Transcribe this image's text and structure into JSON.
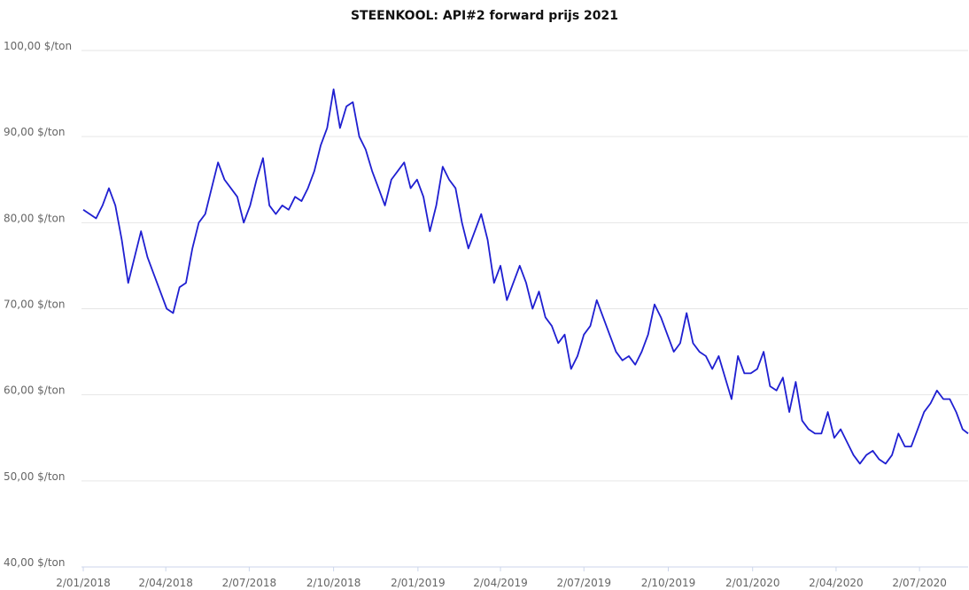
{
  "chart_data": {
    "type": "line",
    "title": "STEENKOOL: API#2 forward prijs 2021",
    "x": [
      "2018-01-02",
      "2018-01-09",
      "2018-01-16",
      "2018-01-23",
      "2018-01-30",
      "2018-02-06",
      "2018-02-13",
      "2018-02-20",
      "2018-02-27",
      "2018-03-06",
      "2018-03-13",
      "2018-03-20",
      "2018-03-27",
      "2018-04-03",
      "2018-04-10",
      "2018-04-17",
      "2018-04-24",
      "2018-05-01",
      "2018-05-08",
      "2018-05-15",
      "2018-05-22",
      "2018-05-29",
      "2018-06-05",
      "2018-06-12",
      "2018-06-19",
      "2018-06-26",
      "2018-07-03",
      "2018-07-10",
      "2018-07-17",
      "2018-07-24",
      "2018-07-31",
      "2018-08-07",
      "2018-08-14",
      "2018-08-21",
      "2018-08-28",
      "2018-09-04",
      "2018-09-11",
      "2018-09-18",
      "2018-09-25",
      "2018-10-02",
      "2018-10-09",
      "2018-10-16",
      "2018-10-23",
      "2018-10-30",
      "2018-11-06",
      "2018-11-13",
      "2018-11-20",
      "2018-11-27",
      "2018-12-04",
      "2018-12-11",
      "2018-12-18",
      "2018-12-25",
      "2019-01-01",
      "2019-01-08",
      "2019-01-15",
      "2019-01-22",
      "2019-01-29",
      "2019-02-05",
      "2019-02-12",
      "2019-02-19",
      "2019-02-26",
      "2019-03-05",
      "2019-03-12",
      "2019-03-19",
      "2019-03-26",
      "2019-04-02",
      "2019-04-09",
      "2019-04-16",
      "2019-04-23",
      "2019-04-30",
      "2019-05-07",
      "2019-05-14",
      "2019-05-21",
      "2019-05-28",
      "2019-06-04",
      "2019-06-11",
      "2019-06-18",
      "2019-06-25",
      "2019-07-02",
      "2019-07-09",
      "2019-07-16",
      "2019-07-23",
      "2019-07-30",
      "2019-08-06",
      "2019-08-13",
      "2019-08-20",
      "2019-08-27",
      "2019-09-03",
      "2019-09-10",
      "2019-09-17",
      "2019-09-24",
      "2019-10-01",
      "2019-10-08",
      "2019-10-15",
      "2019-10-22",
      "2019-10-29",
      "2019-11-05",
      "2019-11-12",
      "2019-11-19",
      "2019-11-26",
      "2019-12-03",
      "2019-12-10",
      "2019-12-17",
      "2019-12-24",
      "2019-12-31",
      "2020-01-07",
      "2020-01-14",
      "2020-01-21",
      "2020-01-28",
      "2020-02-04",
      "2020-02-11",
      "2020-02-18",
      "2020-02-25",
      "2020-03-03",
      "2020-03-10",
      "2020-03-17",
      "2020-03-24",
      "2020-03-31",
      "2020-04-07",
      "2020-04-14",
      "2020-04-21",
      "2020-04-28",
      "2020-05-05",
      "2020-05-12",
      "2020-05-19",
      "2020-05-26",
      "2020-06-02",
      "2020-06-09",
      "2020-06-16",
      "2020-06-23",
      "2020-06-30",
      "2020-07-07",
      "2020-07-14",
      "2020-07-21",
      "2020-07-28",
      "2020-08-04",
      "2020-08-11",
      "2020-08-18",
      "2020-08-24"
    ],
    "series": [
      {
        "name": "API#2 forward prijs 2021",
        "color": "#1f1fd1",
        "values": [
          81.5,
          81,
          80.5,
          82,
          84,
          82,
          78,
          73,
          76,
          79,
          76,
          74,
          72,
          70,
          69.5,
          72.5,
          73,
          77,
          80,
          81,
          84,
          87,
          85,
          84,
          83,
          80,
          82,
          85,
          87.5,
          82,
          81,
          82,
          81.5,
          83,
          82.5,
          84,
          86,
          89,
          91,
          95.5,
          91,
          93.5,
          94,
          90,
          88.5,
          86,
          84,
          82,
          85,
          86,
          87,
          84,
          85,
          83,
          79,
          82,
          86.5,
          85,
          84,
          80,
          77,
          79,
          81,
          78,
          73,
          75,
          71,
          73,
          75,
          73,
          70,
          72,
          69,
          68,
          66,
          67,
          63,
          64.5,
          67,
          68,
          71,
          69,
          67,
          65,
          64,
          64.5,
          63.5,
          65,
          67,
          70.5,
          69,
          67,
          65,
          66,
          69.5,
          66,
          65,
          64.5,
          63,
          64.5,
          62,
          59.5,
          64.5,
          62.5,
          62.5,
          63,
          65,
          61,
          60.5,
          62,
          58,
          61.5,
          57,
          56,
          55.5,
          55.5,
          58,
          55,
          56,
          54.5,
          53,
          52,
          53,
          53.5,
          52.5,
          52,
          53,
          55.5,
          54,
          54,
          56,
          58,
          59,
          60.5,
          59.5,
          59.5,
          58,
          56,
          55.5
        ]
      }
    ],
    "xlim": [
      "2018-01-02",
      "2020-08-24"
    ],
    "xticks": [
      {
        "value": "2018-01-02",
        "label": "2/01/2018"
      },
      {
        "value": "2018-04-02",
        "label": "2/04/2018"
      },
      {
        "value": "2018-07-02",
        "label": "2/07/2018"
      },
      {
        "value": "2018-10-02",
        "label": "2/10/2018"
      },
      {
        "value": "2019-01-02",
        "label": "2/01/2019"
      },
      {
        "value": "2019-04-02",
        "label": "2/04/2019"
      },
      {
        "value": "2019-07-02",
        "label": "2/07/2019"
      },
      {
        "value": "2019-10-02",
        "label": "2/10/2019"
      },
      {
        "value": "2020-01-02",
        "label": "2/01/2020"
      },
      {
        "value": "2020-04-02",
        "label": "2/04/2020"
      },
      {
        "value": "2020-07-02",
        "label": "2/07/2020"
      }
    ],
    "ylim": [
      40,
      100
    ],
    "yticks": [
      {
        "value": 40,
        "label": "40,00 $/ton"
      },
      {
        "value": 50,
        "label": "50,00 $/ton"
      },
      {
        "value": 60,
        "label": "60,00 $/ton"
      },
      {
        "value": 70,
        "label": "70,00 $/ton"
      },
      {
        "value": 80,
        "label": "80,00 $/ton"
      },
      {
        "value": 90,
        "label": "90,00 $/ton"
      },
      {
        "value": 100,
        "label": "100,00 $/ton"
      }
    ],
    "grid": true
  }
}
